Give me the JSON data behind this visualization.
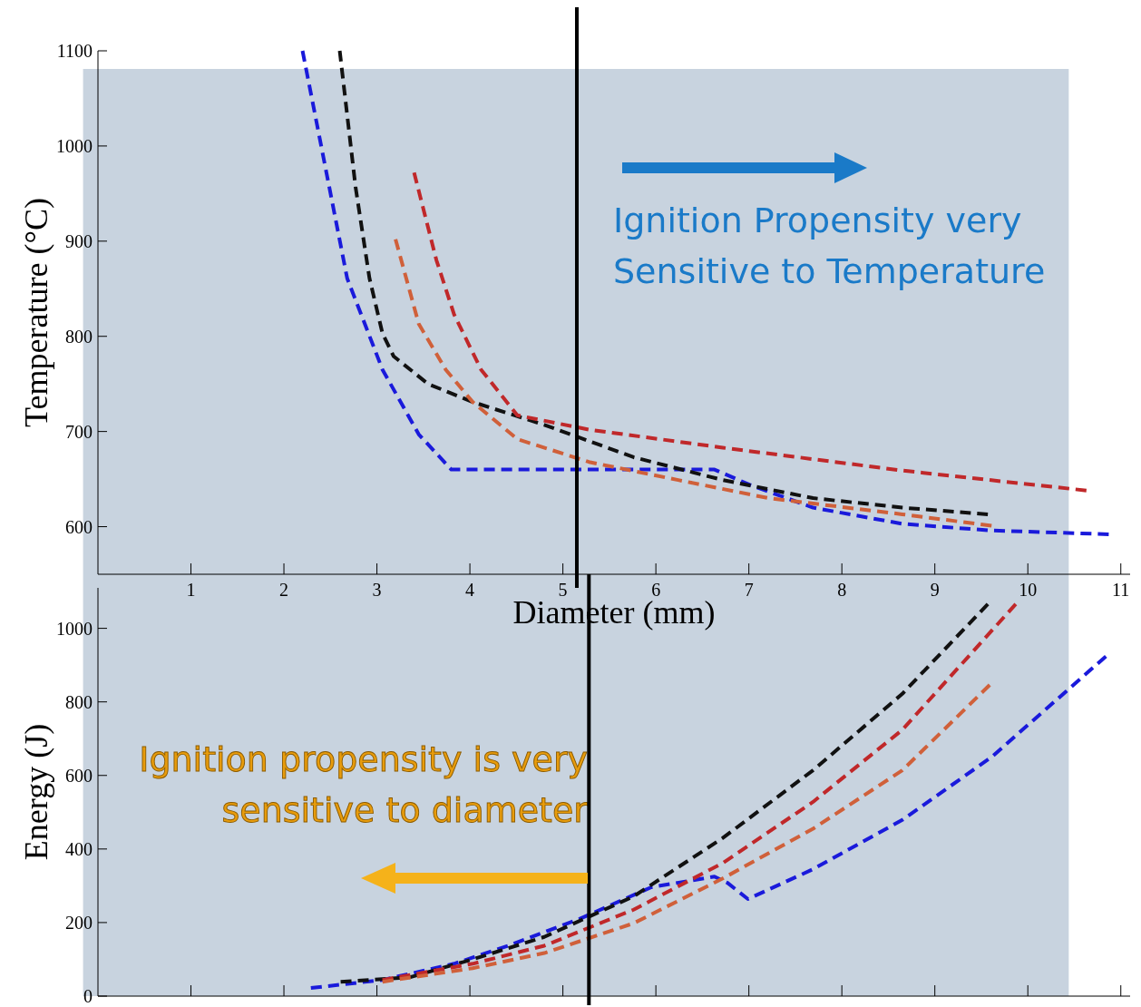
{
  "chart_data": [
    {
      "type": "line",
      "ylabel": "Temperature (°C)",
      "xlabel": "Diameter (mm)",
      "xlim": [
        0,
        11.1
      ],
      "xticks": [
        1,
        2,
        3,
        4,
        5,
        6,
        7,
        8,
        9,
        10,
        11
      ],
      "ylim": [
        550,
        1100
      ],
      "yticks": [
        600,
        700,
        800,
        900,
        1000,
        1100
      ],
      "grid": false,
      "legend": false,
      "line_style": "dashed",
      "marker": "none",
      "bands": [
        {
          "axis": "x",
          "from": -0.16,
          "to": 10.44,
          "color": "#c8d3df"
        }
      ],
      "ref_lines": [
        {
          "axis": "x",
          "value": 5.15,
          "color": "#000000"
        }
      ],
      "annotations": [
        "Ignition Propensity very Sensitive to Temperature"
      ],
      "series": [
        {
          "color": "#1a1adb",
          "x": [
            2.2,
            2.68,
            3.06,
            3.45,
            3.8,
            6.63,
            7.01,
            7.69,
            8.65,
            9.6,
            10.87
          ],
          "values": [
            1100,
            861,
            765,
            697,
            660,
            660,
            644,
            620,
            603,
            596,
            592
          ]
        },
        {
          "color": "#111111",
          "x": [
            2.6,
            2.77,
            2.92,
            3.06,
            3.18,
            3.55,
            4.03,
            4.8,
            5.76,
            6.72,
            7.69,
            8.65,
            9.57
          ],
          "values": [
            1100,
            957,
            861,
            803,
            779,
            750,
            731,
            707,
            673,
            649,
            630,
            620,
            613
          ]
        },
        {
          "color": "#c0282a",
          "x": [
            3.4,
            3.64,
            3.83,
            4.12,
            4.51,
            5.28,
            6.72,
            8.65,
            10.63
          ],
          "values": [
            972,
            880,
            823,
            765,
            717,
            702,
            683,
            659,
            638
          ]
        },
        {
          "color": "#d0603a",
          "x": [
            3.2,
            3.45,
            3.74,
            4.03,
            4.51,
            5.28,
            6.24,
            7.21,
            8.65,
            9.61
          ],
          "values": [
            902,
            813,
            765,
            731,
            692,
            668,
            649,
            630,
            613,
            601
          ]
        }
      ]
    },
    {
      "type": "line",
      "ylabel": "Energy (J)",
      "xlim": [
        0,
        11.1
      ],
      "xticks": [
        {
          "value": 1,
          "label": null
        },
        {
          "value": 2,
          "label": null
        },
        {
          "value": 3,
          "label": null
        },
        {
          "value": 4,
          "label": null
        },
        {
          "value": 5,
          "label": null
        },
        {
          "value": 6,
          "label": null
        },
        {
          "value": 7,
          "label": null
        },
        {
          "value": 8,
          "label": null
        },
        {
          "value": 9,
          "label": null
        },
        {
          "value": 10,
          "label": null
        },
        {
          "value": 11,
          "label": null
        }
      ],
      "ylim": [
        0,
        1110
      ],
      "yticks": [
        0,
        200,
        400,
        600,
        800,
        1000
      ],
      "tick_labels": "y",
      "grid": false,
      "legend": false,
      "line_style": "dashed",
      "marker": "none",
      "bands": [
        {
          "axis": "x",
          "from": -0.16,
          "to": 10.44,
          "color": "#c8d3df"
        }
      ],
      "ref_lines": [
        {
          "axis": "x",
          "value": 5.28,
          "color": "#000000"
        }
      ],
      "annotations": [
        "Ignition propensity is very sensitive to diameter"
      ],
      "series": [
        {
          "color": "#1a1adb",
          "x": [
            2.29,
            3.06,
            3.83,
            4.41,
            5.18,
            5.95,
            6.63,
            6.77,
            6.99,
            7.69,
            8.65,
            9.61,
            10.84
          ],
          "values": [
            22,
            44,
            88,
            137,
            210,
            296,
            325,
            308,
            264,
            345,
            479,
            650,
            924
          ]
        },
        {
          "color": "#111111",
          "x": [
            2.61,
            3.35,
            4.03,
            4.8,
            5.76,
            6.72,
            7.69,
            8.65,
            9.57
          ],
          "values": [
            39,
            51,
            100,
            161,
            271,
            430,
            614,
            822,
            1066
          ]
        },
        {
          "color": "#c0282a",
          "x": [
            3.06,
            4.03,
            4.8,
            5.76,
            6.72,
            7.69,
            8.65,
            9.87
          ],
          "values": [
            44,
            88,
            137,
            235,
            362,
            528,
            724,
            1066
          ]
        },
        {
          "color": "#d0603a",
          "x": [
            3.06,
            4.03,
            4.8,
            5.76,
            6.72,
            7.69,
            8.65,
            9.59
          ],
          "values": [
            39,
            76,
            117,
            198,
            320,
            455,
            614,
            846
          ]
        }
      ]
    }
  ]
}
